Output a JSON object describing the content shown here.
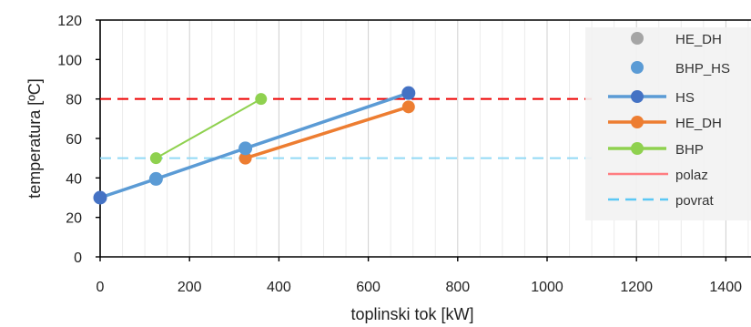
{
  "chart_data": {
    "type": "scatter",
    "xlabel": "toplinski tok [kW]",
    "ylabel": "temperatura [ºC]",
    "xlim": [
      0,
      1400
    ],
    "ylim": [
      0,
      120
    ],
    "xticks": [
      "0",
      "200",
      "400",
      "600",
      "800",
      "1000",
      "1200",
      "1400"
    ],
    "yticks": [
      "0",
      "20",
      "40",
      "60",
      "80",
      "100",
      "120"
    ],
    "grid": "vertical",
    "legend_position": "right",
    "series": [
      {
        "name": "HE_DH",
        "style": "marker",
        "color": "#a5a5a5",
        "x": [],
        "y": []
      },
      {
        "name": "BHP_HS",
        "style": "marker",
        "color": "#5b9bd5",
        "x": [
          0,
          125,
          325,
          690
        ],
        "y": [
          30,
          39.5,
          55,
          83
        ]
      },
      {
        "name": "HS",
        "style": "line-marker",
        "color": "#5b9bd5",
        "marker_color": "#4472c4",
        "x": [
          0,
          125,
          325,
          690
        ],
        "y": [
          30,
          39.5,
          55,
          83
        ]
      },
      {
        "name": "HE_DH",
        "style": "line-marker",
        "color": "#ed7d31",
        "x": [
          325,
          690
        ],
        "y": [
          50,
          76
        ]
      },
      {
        "name": "BHP",
        "style": "line-marker",
        "color": "#8fd14f",
        "x": [
          125,
          360
        ],
        "y": [
          50,
          80
        ]
      },
      {
        "name": "polaz",
        "style": "dashed",
        "color": "#ee0000",
        "legend_color": "#ff7c80",
        "x": [
          0,
          1100
        ],
        "y": [
          80,
          80
        ]
      },
      {
        "name": "povrat",
        "style": "dashed",
        "color": "#92d9f5",
        "legend_color": "#5bc8f5",
        "x": [
          0,
          1100
        ],
        "y": [
          50,
          50
        ]
      }
    ]
  }
}
